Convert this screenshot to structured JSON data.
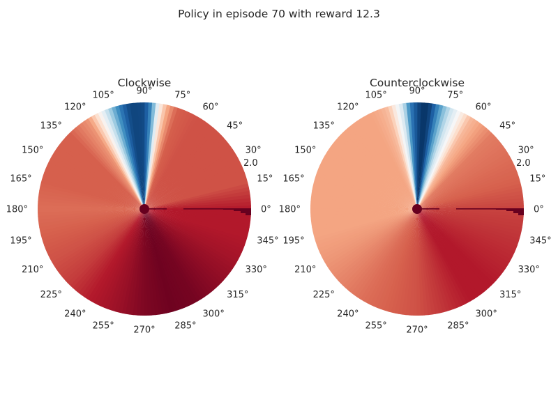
{
  "figure": {
    "title": "Policy in episode 70 with reward 12.3"
  },
  "chart_data": [
    {
      "type": "heatmap",
      "projection": "polar",
      "title": "Clockwise",
      "colormap": "RdBu_r (blue = low, white = mid, red = high)",
      "theta_ticks": [
        "0°",
        "15°",
        "30°",
        "45°",
        "60°",
        "75°",
        "90°",
        "105°",
        "120°",
        "135°",
        "150°",
        "165°",
        "180°",
        "195°",
        "210°",
        "225°",
        "240°",
        "255°",
        "270°",
        "285°",
        "300°",
        "315°",
        "330°",
        "345°"
      ],
      "r_ticks": [
        "2.0"
      ],
      "grid": false,
      "angular_profile": {
        "theta_deg": [
          0,
          15,
          30,
          45,
          60,
          72,
          78,
          82,
          86,
          90,
          94,
          98,
          102,
          106,
          110,
          116,
          122,
          135,
          150,
          165,
          180,
          195,
          210,
          225,
          240,
          255,
          270,
          285,
          300,
          315,
          330,
          345,
          360
        ],
        "value": [
          0.9,
          0.82,
          0.82,
          0.82,
          0.82,
          0.8,
          0.68,
          0.52,
          0.2,
          0.05,
          0.04,
          0.04,
          0.1,
          0.22,
          0.35,
          0.55,
          0.72,
          0.8,
          0.8,
          0.8,
          0.78,
          0.8,
          0.82,
          0.85,
          0.9,
          0.93,
          0.97,
          0.99,
          0.98,
          0.95,
          0.92,
          0.9,
          0.9
        ]
      }
    },
    {
      "type": "heatmap",
      "projection": "polar",
      "title": "Counterclockwise",
      "colormap": "RdBu_r (blue = low, white = mid, red = high)",
      "theta_ticks": [
        "0°",
        "15°",
        "30°",
        "45°",
        "60°",
        "75°",
        "90°",
        "105°",
        "120°",
        "135°",
        "150°",
        "165°",
        "180°",
        "195°",
        "210°",
        "225°",
        "240°",
        "255°",
        "270°",
        "285°",
        "300°",
        "315°",
        "330°",
        "345°"
      ],
      "r_ticks": [
        "2.0"
      ],
      "grid": false,
      "angular_profile": {
        "theta_deg": [
          0,
          15,
          30,
          45,
          60,
          66,
          72,
          78,
          82,
          86,
          90,
          94,
          98,
          102,
          106,
          110,
          116,
          122,
          135,
          150,
          165,
          180,
          195,
          210,
          225,
          240,
          255,
          270,
          285,
          300,
          315,
          330,
          345,
          360
        ],
        "value": [
          0.84,
          0.8,
          0.78,
          0.76,
          0.66,
          0.52,
          0.38,
          0.2,
          0.05,
          0.0,
          0.05,
          0.15,
          0.4,
          0.52,
          0.65,
          0.68,
          0.7,
          0.7,
          0.7,
          0.7,
          0.7,
          0.7,
          0.7,
          0.72,
          0.75,
          0.78,
          0.8,
          0.82,
          0.86,
          0.9,
          0.9,
          0.88,
          0.86,
          0.84
        ]
      }
    }
  ]
}
